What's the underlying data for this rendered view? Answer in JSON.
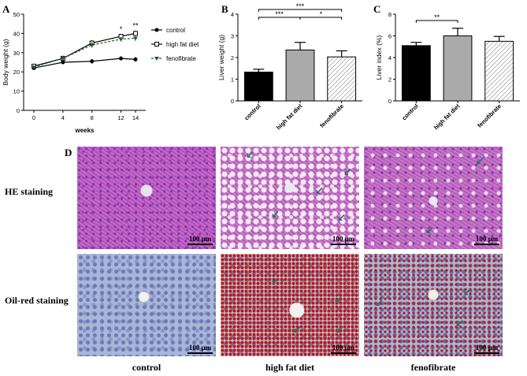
{
  "panels": {
    "a": "A",
    "b": "B",
    "c": "C",
    "d": "D"
  },
  "chart_data": [
    {
      "type": "line",
      "panel": "A",
      "xlabel": "weeks",
      "ylabel": "Body weight (g)",
      "x": [
        0,
        4,
        8,
        12,
        14
      ],
      "x_ticks": [
        "0",
        "4",
        "8",
        "12",
        "14"
      ],
      "y_ticks": [
        "0",
        "10",
        "20",
        "30",
        "40",
        "50"
      ],
      "ylim": [
        0,
        50
      ],
      "series": [
        {
          "name": "control",
          "values": [
            22,
            25,
            25.5,
            27,
            26.5
          ],
          "err": [
            0.8,
            1,
            1.2,
            1,
            1.2
          ],
          "color": "#000000"
        },
        {
          "name": "high fat diet",
          "values": [
            23,
            27,
            35,
            38.5,
            40
          ],
          "err": [
            0.8,
            1.5,
            1.5,
            1.2,
            1.5
          ],
          "color": "#000000"
        },
        {
          "name": "fenofibrate",
          "values": [
            22.5,
            27,
            34,
            37,
            37.5
          ],
          "err": [
            0.8,
            1.5,
            1.5,
            1.2,
            1.5
          ],
          "color": "#1f5f2f"
        }
      ],
      "annotations": [
        {
          "x": 12,
          "text": "*"
        },
        {
          "x": 14,
          "text": "**"
        }
      ]
    },
    {
      "type": "bar",
      "panel": "B",
      "ylabel": "Liver weight (g)",
      "categories": [
        "control",
        "high fat diet",
        "fenofibrate"
      ],
      "values": [
        1.33,
        2.35,
        2.03
      ],
      "err": [
        0.13,
        0.35,
        0.28
      ],
      "y_ticks": [
        "0",
        "1",
        "2",
        "3",
        "4"
      ],
      "ylim": [
        0,
        4
      ],
      "significance": [
        {
          "from": 0,
          "to": 2,
          "text": "***"
        },
        {
          "from": 0,
          "to": 1,
          "text": "***"
        },
        {
          "from": 1,
          "to": 2,
          "text": "*"
        }
      ]
    },
    {
      "type": "bar",
      "panel": "C",
      "ylabel": "Liver index (%)",
      "categories": [
        "control",
        "high fat diet",
        "fenofibrate"
      ],
      "values": [
        5.1,
        6.0,
        5.5
      ],
      "err": [
        0.3,
        0.7,
        0.45
      ],
      "y_ticks": [
        "0",
        "2",
        "4",
        "6",
        "8"
      ],
      "ylim": [
        0,
        8
      ],
      "significance": [
        {
          "from": 0,
          "to": 1,
          "text": "**"
        }
      ]
    }
  ],
  "histology": {
    "rows": [
      "HE staining",
      "Oil-red staining"
    ],
    "columns": [
      "control",
      "high fat diet",
      "fenofibrate"
    ],
    "scale_bar": "100 μm"
  }
}
